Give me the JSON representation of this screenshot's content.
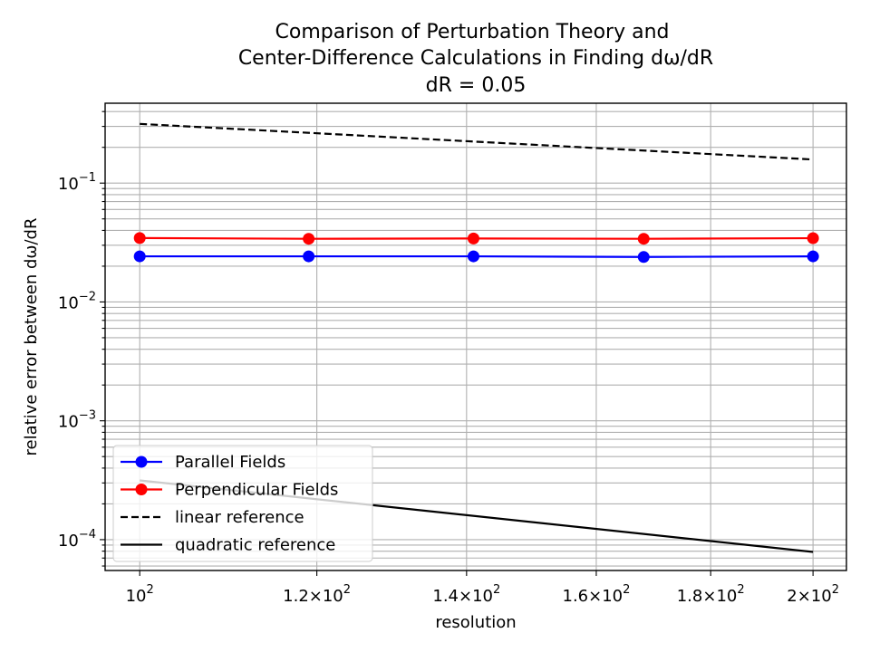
{
  "chart_data": {
    "type": "line",
    "title_lines": [
      "Comparison of Perturbation Theory and",
      "Center-Difference Calculations in Finding dω/dR",
      "dR = 0.05"
    ],
    "xlabel": "resolution",
    "ylabel": "relative error between dω/dR",
    "x_scale": "log",
    "y_scale": "log",
    "xlim": [
      96.5,
      207
    ],
    "ylim": [
      5.5e-05,
      0.47
    ],
    "grid": true,
    "grid_which": "both",
    "legend_position": "lower-left",
    "x_ticks": [
      {
        "value": 100,
        "mant": "",
        "base": "10",
        "exp": "2"
      },
      {
        "value": 120,
        "mant": "1.2×",
        "base": "10",
        "exp": "2"
      },
      {
        "value": 140,
        "mant": "1.4×",
        "base": "10",
        "exp": "2"
      },
      {
        "value": 160,
        "mant": "1.6×",
        "base": "10",
        "exp": "2"
      },
      {
        "value": 180,
        "mant": "1.8×",
        "base": "10",
        "exp": "2"
      },
      {
        "value": 200,
        "mant": "2×",
        "base": "10",
        "exp": "2"
      }
    ],
    "y_ticks": [
      {
        "value": 0.0001,
        "base": "10",
        "exp": "−4"
      },
      {
        "value": 0.001,
        "base": "10",
        "exp": "−3"
      },
      {
        "value": 0.01,
        "base": "10",
        "exp": "−2"
      },
      {
        "value": 0.1,
        "base": "10",
        "exp": "−1"
      }
    ],
    "series": [
      {
        "name": "Parallel Fields",
        "color": "#0000ff",
        "style": "solid",
        "marker": "circle",
        "x": [
          100,
          119,
          141,
          168,
          200
        ],
        "y": [
          0.0242,
          0.0242,
          0.0242,
          0.0239,
          0.0242
        ]
      },
      {
        "name": "Perpendicular Fields",
        "color": "#ff0000",
        "style": "solid",
        "marker": "circle",
        "x": [
          100,
          119,
          141,
          168,
          200
        ],
        "y": [
          0.0345,
          0.034,
          0.0342,
          0.034,
          0.0344
        ]
      },
      {
        "name": "linear reference",
        "color": "#000000",
        "style": "dashed",
        "marker": "none",
        "x": [
          100,
          200
        ],
        "y": [
          0.315,
          0.158
        ]
      },
      {
        "name": "quadratic reference",
        "color": "#000000",
        "style": "solid",
        "marker": "none",
        "x": [
          100,
          200
        ],
        "y": [
          0.000315,
          7.88e-05
        ]
      }
    ]
  }
}
